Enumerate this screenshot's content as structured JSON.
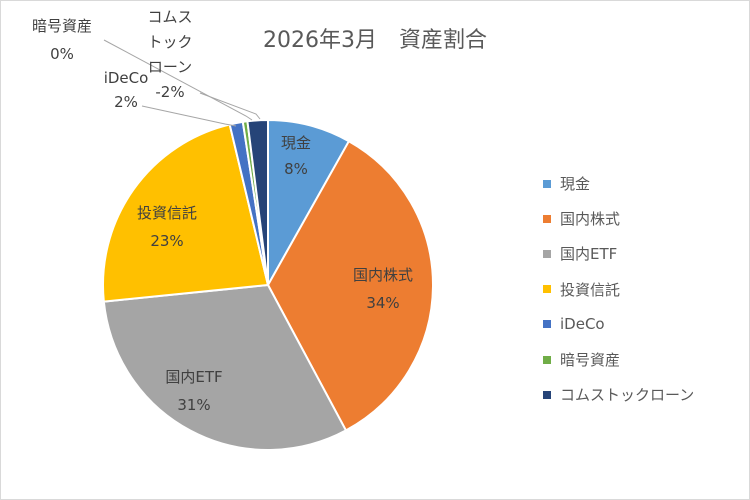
{
  "chart_data": {
    "type": "pie",
    "title": "2026年3月　資産割合",
    "categories": [
      "現金",
      "国内株式",
      "国内ETF",
      "投資信託",
      "iDeCo",
      "暗号資産",
      "コムストックローン"
    ],
    "values": [
      8,
      34,
      31,
      23,
      2,
      0,
      -2
    ],
    "value_labels": [
      "8%",
      "34%",
      "31%",
      "23%",
      "2%",
      "0%",
      "-2%"
    ],
    "colors": [
      "#5b9bd5",
      "#ed7d31",
      "#a5a5a5",
      "#ffc000",
      "#4472c4",
      "#70ad47",
      "#264478"
    ],
    "legend_position": "right",
    "show_category_labels": true,
    "show_percent_labels": true
  }
}
